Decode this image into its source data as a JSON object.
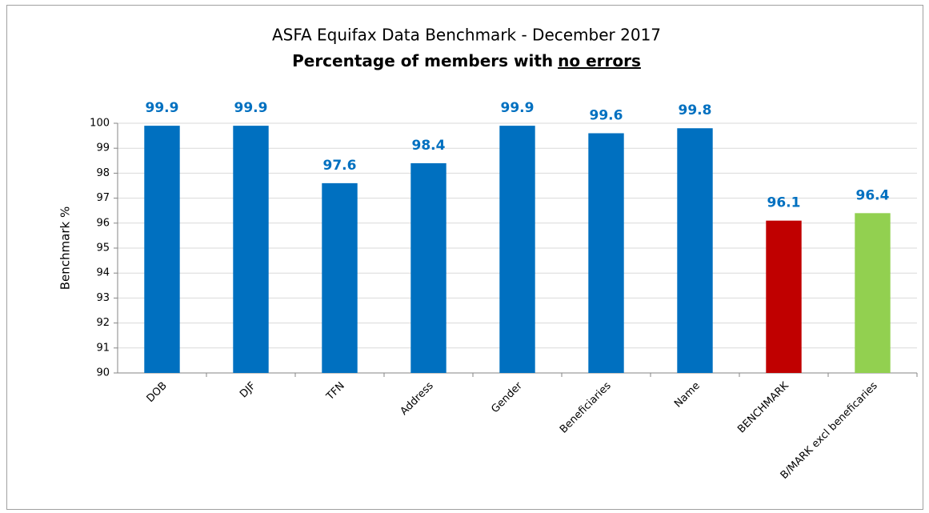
{
  "chart_data": {
    "type": "bar",
    "title": "ASFA Equifax Data Benchmark - December 2017",
    "subtitle": [
      "Percentage of members with",
      "no errors"
    ],
    "y_label": "Benchmark %",
    "categories": [
      "DOB",
      "DJF",
      "TFN",
      "Address",
      "Gender",
      "Beneficiaries",
      "Name",
      "BENCHMARK",
      "B/MARK excl beneficaries"
    ],
    "values": [
      99.9,
      99.9,
      97.6,
      98.4,
      99.9,
      99.6,
      99.8,
      96.1,
      96.4
    ],
    "colors": [
      "#0070c0",
      "#0070c0",
      "#0070c0",
      "#0070c0",
      "#0070c0",
      "#0070c0",
      "#0070c0",
      "#c00000",
      "#92d050"
    ],
    "value_label_color": "#0070c0",
    "ylim": [
      90,
      100
    ],
    "yticks": [
      90,
      91,
      92,
      93,
      94,
      95,
      96,
      97,
      98,
      99,
      100
    ],
    "grid": true
  }
}
